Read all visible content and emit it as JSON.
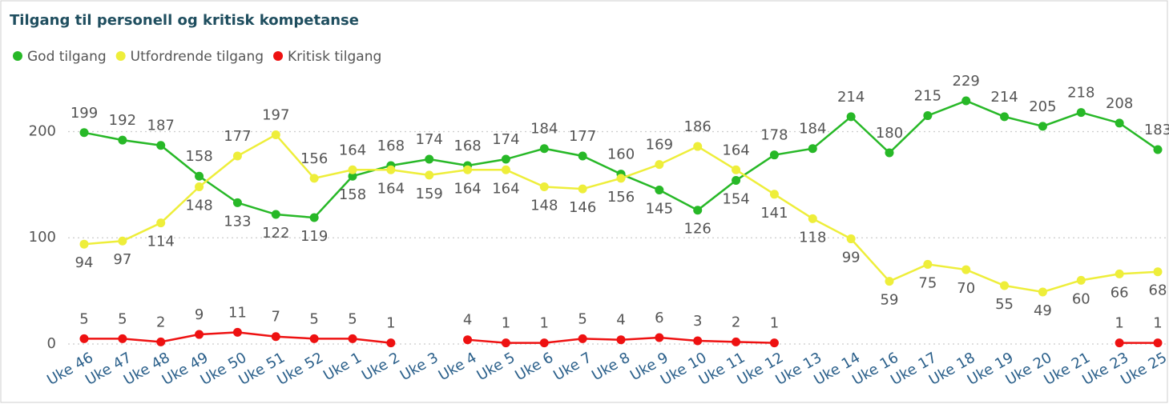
{
  "chart_data": {
    "type": "line",
    "title": "Tilgang til personell og kritisk kompetanse",
    "categories": [
      "Uke 46",
      "Uke 47",
      "Uke 48",
      "Uke 49",
      "Uke 50",
      "Uke 51",
      "Uke 52",
      "Uke 1",
      "Uke 2",
      "Uke 3",
      "Uke 4",
      "Uke 5",
      "Uke 6",
      "Uke 7",
      "Uke 8",
      "Uke 9",
      "Uke 10",
      "Uke 11",
      "Uke 12",
      "Uke 13",
      "Uke 14",
      "Uke 16",
      "Uke 17",
      "Uke 18",
      "Uke 19",
      "Uke 20",
      "Uke 21",
      "Uke 23",
      "Uke 25"
    ],
    "series": [
      {
        "name": "God tilgang",
        "color": "#27b827",
        "values": [
          199,
          192,
          187,
          158,
          133,
          122,
          119,
          158,
          168,
          174,
          168,
          174,
          184,
          177,
          160,
          145,
          126,
          154,
          178,
          184,
          214,
          180,
          215,
          229,
          214,
          205,
          218,
          208,
          183
        ]
      },
      {
        "name": "Utfordrende tilgang",
        "color": "#eeee3a",
        "values": [
          94,
          97,
          114,
          148,
          177,
          197,
          156,
          164,
          164,
          159,
          164,
          164,
          148,
          146,
          156,
          169,
          186,
          164,
          141,
          118,
          99,
          59,
          75,
          70,
          55,
          49,
          60,
          66,
          68
        ]
      },
      {
        "name": "Kritisk tilgang",
        "color": "#ee1111",
        "values": [
          5,
          5,
          2,
          9,
          11,
          7,
          5,
          5,
          1,
          null,
          4,
          1,
          1,
          5,
          4,
          6,
          3,
          2,
          1,
          null,
          null,
          null,
          null,
          null,
          null,
          null,
          null,
          1,
          1
        ]
      }
    ],
    "ylim": [
      0,
      235
    ],
    "yticks": [
      0,
      100,
      200
    ],
    "grid": true,
    "legend": "top-left"
  }
}
